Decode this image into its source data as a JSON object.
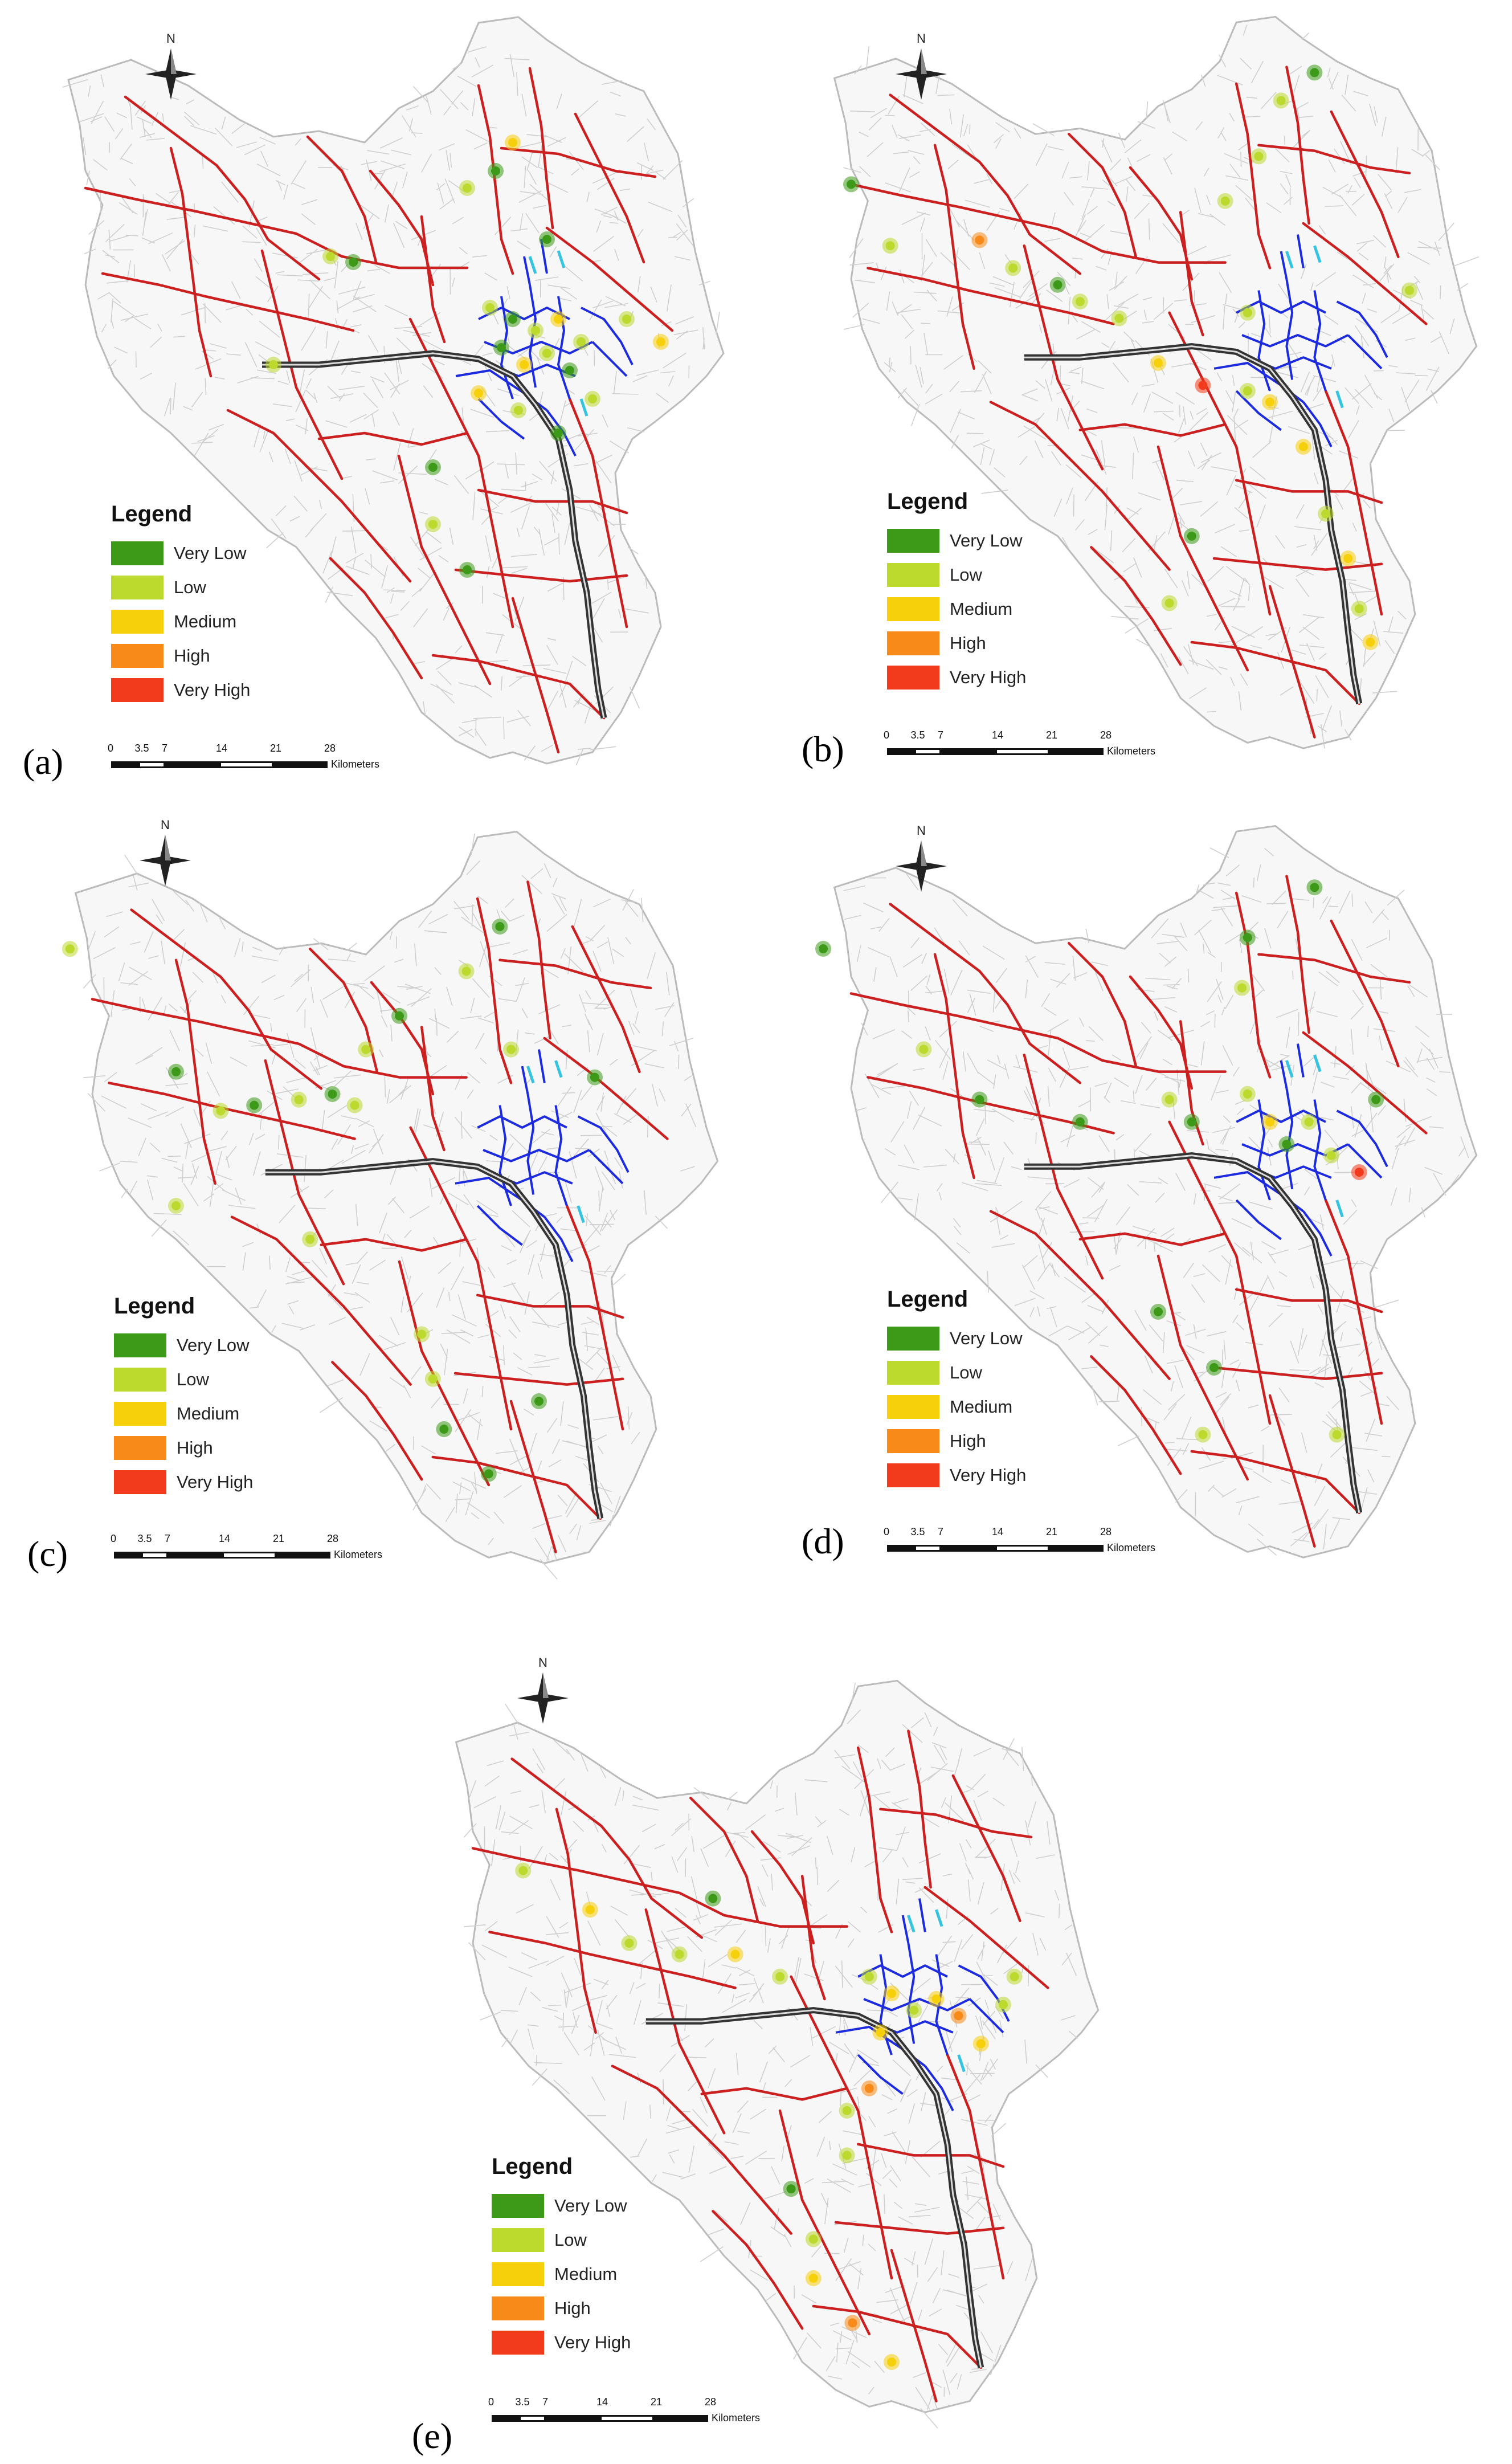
{
  "legend": {
    "title": "Legend",
    "classes": [
      {
        "label": "Very Low",
        "color": "#3c9a18"
      },
      {
        "label": "Low",
        "color": "#bcd92d"
      },
      {
        "label": "Medium",
        "color": "#f7d00c"
      },
      {
        "label": "High",
        "color": "#f78a18"
      },
      {
        "label": "Very High",
        "color": "#f23a1c"
      }
    ]
  },
  "scale": {
    "ticks": [
      "0",
      "3.5",
      "7",
      "14",
      "21",
      "28"
    ],
    "unit": "Kilometers"
  },
  "north_label": "N",
  "road_colors": {
    "local": "#cfcfcf",
    "arterial": "#cc1f1f",
    "urban": "#1d2be0",
    "motorway": "#333333",
    "ramp": "#34c3e0"
  },
  "panels": [
    {
      "label": "(a)"
    },
    {
      "label": "(b)"
    },
    {
      "label": "(c)"
    },
    {
      "label": "(d)"
    },
    {
      "label": "(e)"
    }
  ]
}
